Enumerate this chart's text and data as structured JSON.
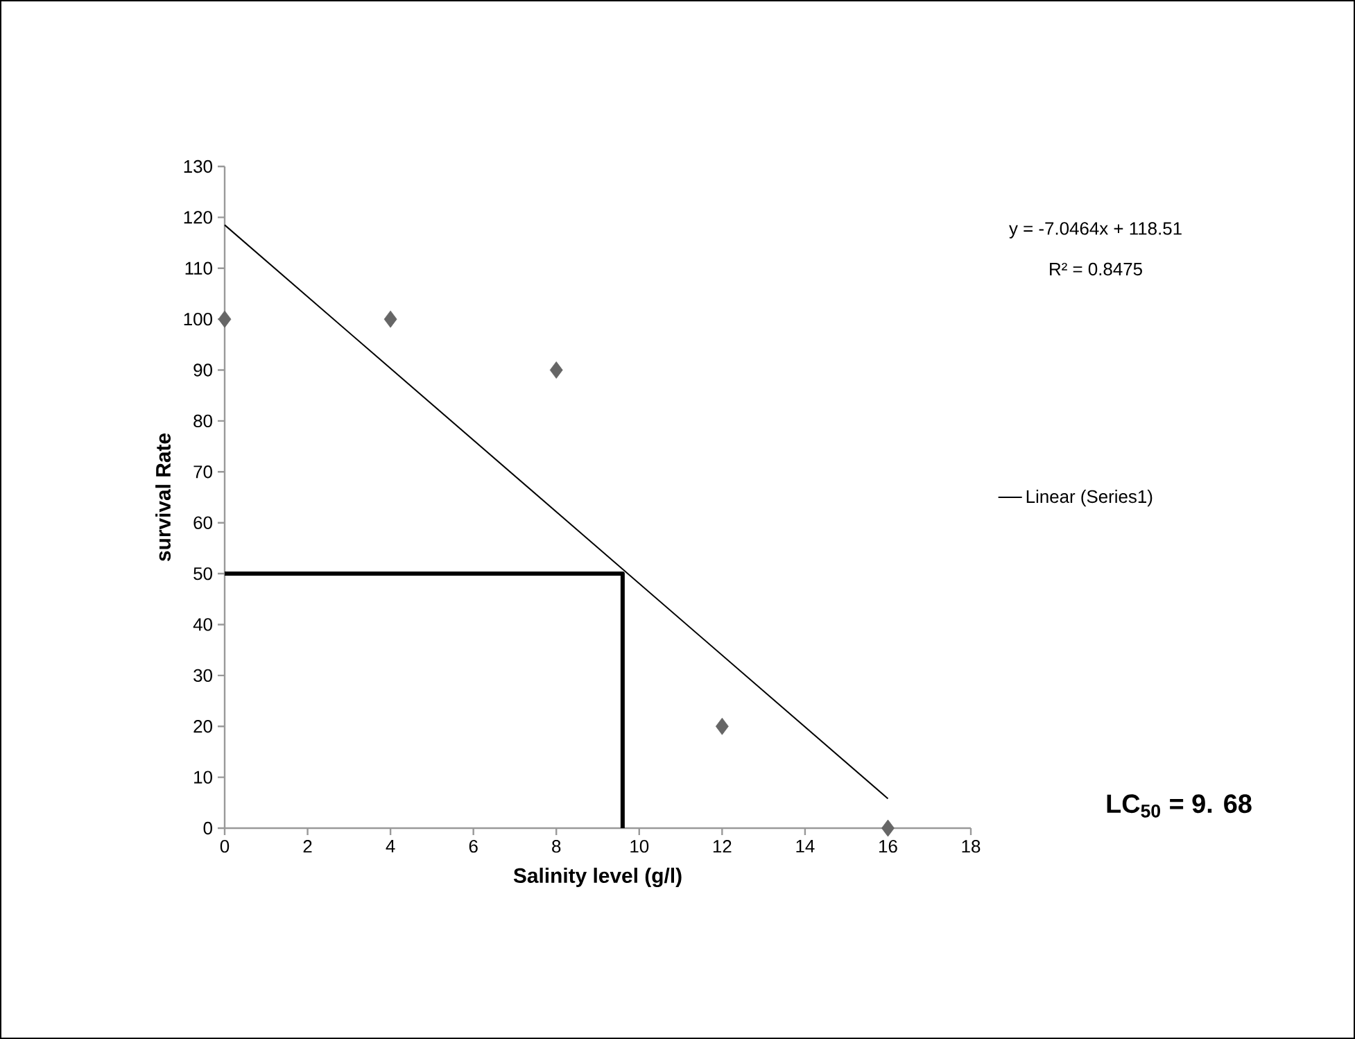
{
  "chart_data": {
    "type": "scatter",
    "xlabel": "Salinity level (g/l)",
    "ylabel": "survival Rate",
    "xlim": [
      0,
      18
    ],
    "ylim": [
      0,
      130
    ],
    "xticks": [
      0,
      2,
      4,
      6,
      8,
      10,
      12,
      14,
      16,
      18
    ],
    "yticks": [
      0,
      10,
      20,
      30,
      40,
      50,
      60,
      70,
      80,
      90,
      100,
      110,
      120,
      130
    ],
    "series": [
      {
        "color": "#666666",
        "marker": "diamond",
        "x": [
          0,
          4,
          8,
          12,
          16
        ],
        "values": [
          100,
          100,
          90,
          20,
          0
        ]
      },
      {
        "type": "line",
        "name": "Linear (Series1)",
        "color": "#000000",
        "marker": "none",
        "x": [
          0,
          16
        ],
        "values": [
          118.5,
          5.8
        ]
      },
      {
        "type": "line",
        "color": "#000000",
        "marker": "none",
        "x": [
          0,
          9.6,
          9.6
        ],
        "values": [
          50,
          50,
          0
        ]
      }
    ],
    "annotations": [
      "y = -7.0464x + 118.51",
      "R² = 0.8475",
      "LC$_{50}$ = 9. 68"
    ],
    "line_style": "solid",
    "grid": false,
    "legend": "right"
  }
}
